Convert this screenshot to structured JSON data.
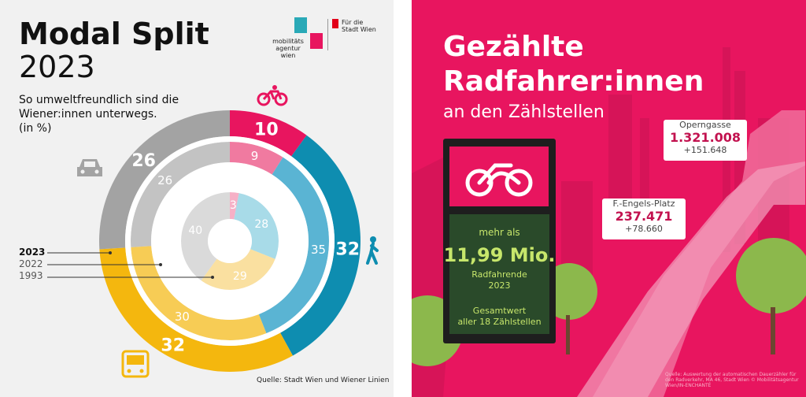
{
  "left": {
    "title_line1": "Modal Split",
    "title_line2": "2023",
    "subtitle": [
      "So umweltfreundlich sind die",
      "Wiener:innen unterwegs.",
      "(in %)"
    ],
    "logo": {
      "agency": [
        "mobilitäts",
        "agentur",
        "wien"
      ],
      "city": [
        "Für die",
        "Stadt Wien"
      ]
    },
    "legend": {
      "y2023": "2023",
      "y2022": "2022",
      "y1993": "1993"
    },
    "source": "Quelle: Stadt Wien und Wiener Linien",
    "icons": {
      "bike": "bicycle-icon",
      "walk": "pedestrian-icon",
      "bus": "bus-icon",
      "car": "car-icon"
    }
  },
  "chart_data": {
    "type": "pie",
    "title": "Modal Split 2023",
    "categories": [
      "Rad",
      "Fuß",
      "Öffis",
      "Auto"
    ],
    "series": [
      {
        "name": "2023",
        "values": [
          10,
          32,
          32,
          26
        ]
      },
      {
        "name": "1993",
        "values": [
          3,
          28,
          29,
          40
        ]
      },
      {
        "name": "2022",
        "values": [
          9,
          35,
          30,
          26
        ]
      }
    ],
    "colors": {
      "bike": [
        "#e8155f",
        "#f07aa0",
        "#f6b0c6"
      ],
      "walk": [
        "#0e8db0",
        "#5ab4d3",
        "#a8dbe8"
      ],
      "transit": [
        "#f4b70e",
        "#f7cc55",
        "#fae0a0"
      ],
      "car": [
        "#a3a3a3",
        "#c3c3c3",
        "#dadada"
      ]
    }
  },
  "right": {
    "title_line1": "Gezählte",
    "title_line2": "Radfahrer:innen",
    "subtitle": "an den Zählstellen",
    "counter": {
      "pre": "mehr als",
      "value": "11,99 Mio.",
      "label1": "Radfahrende",
      "label2": "2023",
      "total1": "Gesamtwert",
      "total2": "aller 18 Zählstellen"
    },
    "tag1": {
      "label": "Operngasse",
      "value": "1.321.008",
      "delta": "+151.648"
    },
    "tag2": {
      "label": "F.-Engels-Platz",
      "value": "237.471",
      "delta": "+78.660"
    },
    "credit": "Quelle: Auswertung der automatischen Dauerzähler für den Radverkehr, MA 46, Stadt Wien © Mobilitätsagentur Wien/IN-ENCHANTÉ"
  }
}
